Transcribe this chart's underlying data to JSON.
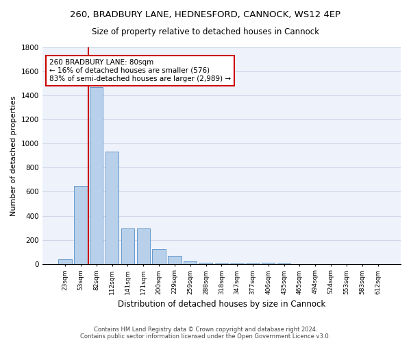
{
  "title1": "260, BRADBURY LANE, HEDNESFORD, CANNOCK, WS12 4EP",
  "title2": "Size of property relative to detached houses in Cannock",
  "xlabel": "Distribution of detached houses by size in Cannock",
  "ylabel": "Number of detached properties",
  "bar_color": "#b8d0ea",
  "bar_edge_color": "#6699cc",
  "property_line_color": "#cc0000",
  "annotation_text": "260 BRADBURY LANE: 80sqm\n← 16% of detached houses are smaller (576)\n83% of semi-detached houses are larger (2,989) →",
  "annotation_box_edgecolor": "#cc0000",
  "categories": [
    "23sqm",
    "53sqm",
    "82sqm",
    "112sqm",
    "141sqm",
    "171sqm",
    "200sqm",
    "229sqm",
    "259sqm",
    "288sqm",
    "318sqm",
    "347sqm",
    "377sqm",
    "406sqm",
    "435sqm",
    "465sqm",
    "494sqm",
    "524sqm",
    "553sqm",
    "583sqm",
    "612sqm"
  ],
  "values": [
    40,
    650,
    1470,
    935,
    295,
    295,
    125,
    65,
    20,
    10,
    5,
    2,
    2,
    12,
    2,
    0,
    0,
    0,
    0,
    0,
    0
  ],
  "ylim": [
    0,
    1800
  ],
  "yticks": [
    0,
    200,
    400,
    600,
    800,
    1000,
    1200,
    1400,
    1600,
    1800
  ],
  "grid_color": "#d0d8e8",
  "bg_color": "#eef2fa",
  "footnote": "Contains HM Land Registry data © Crown copyright and database right 2024.\nContains public sector information licensed under the Open Government Licence v3.0.",
  "property_bar_index": 2,
  "figsize": [
    6.0,
    5.0
  ],
  "dpi": 100
}
